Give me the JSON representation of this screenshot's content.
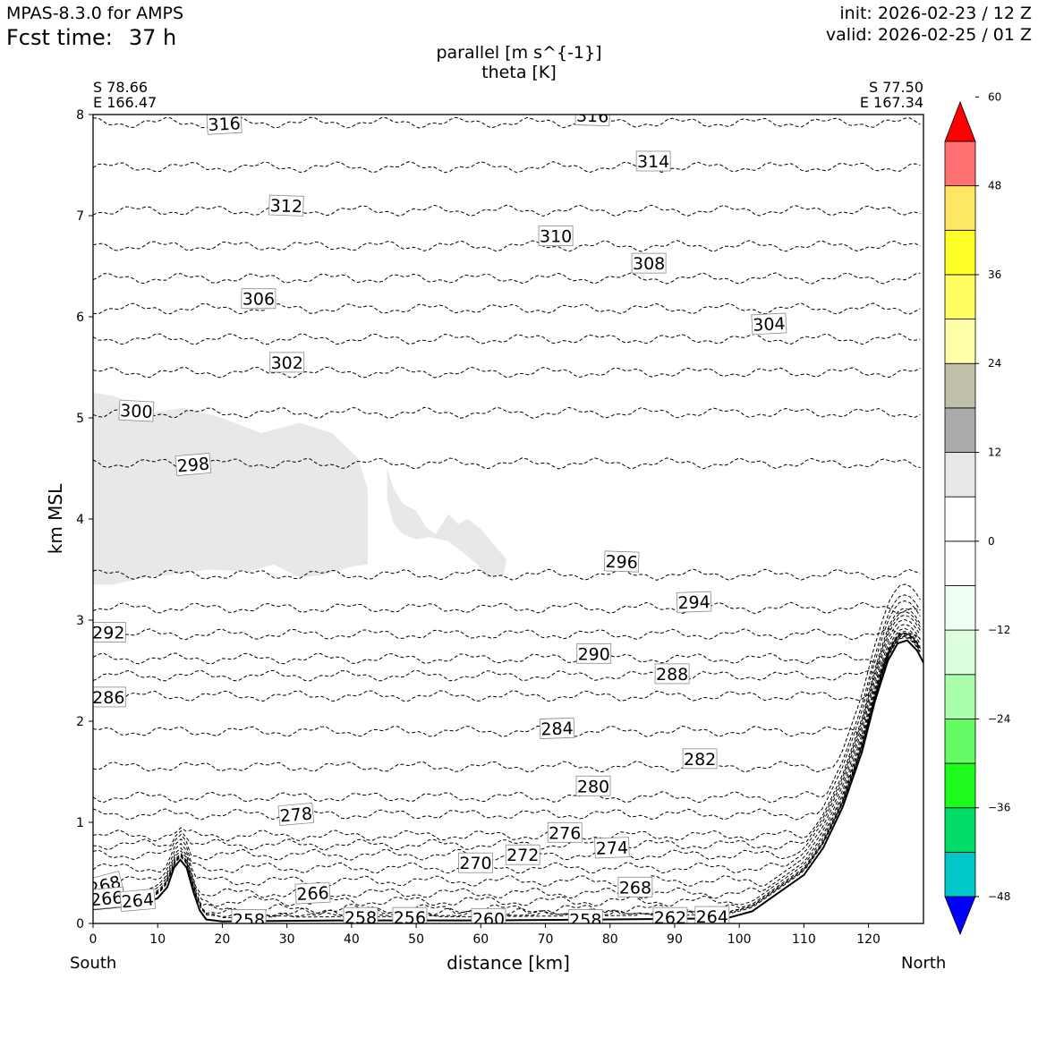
{
  "header": {
    "model": "MPAS-8.3.0 for AMPS",
    "fcst_label": "Fcst time:",
    "fcst_value": "37 h",
    "init": "init: 2026-02-23 / 12 Z",
    "valid": "valid: 2026-02-25 / 01 Z"
  },
  "title": {
    "line1": "parallel [m s^{-1}]",
    "line2": "theta [K]"
  },
  "endpoints": {
    "left_lat": "S 78.66",
    "left_lon": "E 166.47",
    "right_lat": "S 77.50",
    "right_lon": "E 167.34",
    "left_dir": "South",
    "right_dir": "North"
  },
  "chart_data": {
    "type": "contour",
    "xlabel": "distance [km]",
    "ylabel": "km MSL",
    "xlim": [
      0,
      128.5
    ],
    "ylim": [
      0,
      8
    ],
    "xticks": [
      0,
      10,
      20,
      30,
      40,
      50,
      60,
      70,
      80,
      90,
      100,
      110,
      120
    ],
    "yticks": [
      0,
      1,
      2,
      3,
      4,
      5,
      6,
      7,
      8
    ],
    "shaded_field": "parallel wind [m s^-1]",
    "colorbar": {
      "levels": [
        -54,
        -48,
        -42,
        -36,
        -30,
        -24,
        -18,
        -12,
        -6,
        0,
        6,
        12,
        18,
        24,
        30,
        36,
        42,
        48,
        54,
        60
      ],
      "colors": [
        "#0000ff",
        "#00c8c8",
        "#00dc64",
        "#1efa1e",
        "#64fa64",
        "#aaffaa",
        "#dcffdc",
        "#f0fff0",
        "#ffffff",
        "#ffffff",
        "#e8e8e8",
        "#aaaaaa",
        "#c0c0a8",
        "#ffffaa",
        "#ffff64",
        "#ffff28",
        "#ffe664",
        "#ff7070",
        "#ff0000"
      ],
      "tick_labels": [
        "60",
        "48",
        "36",
        "24",
        "12",
        "0",
        "−12",
        "−24",
        "−36",
        "−48"
      ],
      "tick_values": [
        60,
        48,
        36,
        24,
        12,
        0,
        -12,
        -24,
        -36,
        -48
      ]
    },
    "contour_field": "theta [K]",
    "theta_lines": [
      {
        "level": 256,
        "y": 0.05
      },
      {
        "level": 258,
        "y": 0.08
      },
      {
        "level": 260,
        "y": 0.1
      },
      {
        "level": 262,
        "y": 0.14
      },
      {
        "level": 264,
        "y": 0.22
      },
      {
        "level": 266,
        "y": 0.3
      },
      {
        "level": 268,
        "y": 0.42
      },
      {
        "level": 270,
        "y": 0.55
      },
      {
        "level": 272,
        "y": 0.68
      },
      {
        "level": 274,
        "y": 0.78
      },
      {
        "level": 276,
        "y": 0.87
      },
      {
        "level": 278,
        "y": 1.08
      },
      {
        "level": 280,
        "y": 1.25
      },
      {
        "level": 282,
        "y": 1.55
      },
      {
        "level": 284,
        "y": 1.9
      },
      {
        "level": 286,
        "y": 2.25
      },
      {
        "level": 288,
        "y": 2.45
      },
      {
        "level": 290,
        "y": 2.62
      },
      {
        "level": 292,
        "y": 2.86
      },
      {
        "level": 294,
        "y": 3.12
      },
      {
        "level": 296,
        "y": 3.45
      },
      {
        "level": 298,
        "y": 4.55
      },
      {
        "level": 300,
        "y": 5.05
      },
      {
        "level": 302,
        "y": 5.45
      },
      {
        "level": 304,
        "y": 5.78
      },
      {
        "level": 306,
        "y": 6.08
      },
      {
        "level": 308,
        "y": 6.38
      },
      {
        "level": 310,
        "y": 6.7
      },
      {
        "level": 312,
        "y": 7.05
      },
      {
        "level": 314,
        "y": 7.48
      },
      {
        "level": 316,
        "y": 7.92
      }
    ],
    "contour_labels": [
      {
        "text": "316",
        "x": 20.3,
        "y": 7.91,
        "rot": -3
      },
      {
        "text": "316",
        "x": 77.3,
        "y": 7.99,
        "rot": 2
      },
      {
        "text": "314",
        "x": 86.7,
        "y": 7.54,
        "rot": 0
      },
      {
        "text": "312",
        "x": 29.9,
        "y": 7.1,
        "rot": 2
      },
      {
        "text": "310",
        "x": 71.6,
        "y": 6.8,
        "rot": 0
      },
      {
        "text": "308",
        "x": 86.0,
        "y": 6.53,
        "rot": 0
      },
      {
        "text": "306",
        "x": 25.6,
        "y": 6.18,
        "rot": 0
      },
      {
        "text": "304",
        "x": 104.6,
        "y": 5.93,
        "rot": -3
      },
      {
        "text": "302",
        "x": 30.0,
        "y": 5.55,
        "rot": 0
      },
      {
        "text": "300",
        "x": 6.7,
        "y": 5.07,
        "rot": 3
      },
      {
        "text": "298",
        "x": 15.5,
        "y": 4.54,
        "rot": -5
      },
      {
        "text": "296",
        "x": 81.8,
        "y": 3.58,
        "rot": 2
      },
      {
        "text": "294",
        "x": 93.0,
        "y": 3.18,
        "rot": -2
      },
      {
        "text": "292",
        "x": 2.4,
        "y": 2.88,
        "rot": 0
      },
      {
        "text": "290",
        "x": 77.5,
        "y": 2.67,
        "rot": 0
      },
      {
        "text": "288",
        "x": 89.6,
        "y": 2.47,
        "rot": 0
      },
      {
        "text": "286",
        "x": 2.4,
        "y": 2.24,
        "rot": 0
      },
      {
        "text": "284",
        "x": 71.8,
        "y": 1.93,
        "rot": -2
      },
      {
        "text": "282",
        "x": 93.9,
        "y": 1.63,
        "rot": 0
      },
      {
        "text": "280",
        "x": 77.4,
        "y": 1.36,
        "rot": 0
      },
      {
        "text": "278",
        "x": 31.4,
        "y": 1.08,
        "rot": -5
      },
      {
        "text": "276",
        "x": 73.0,
        "y": 0.9,
        "rot": 0
      },
      {
        "text": "274",
        "x": 80.3,
        "y": 0.75,
        "rot": -2
      },
      {
        "text": "272",
        "x": 66.5,
        "y": 0.68,
        "rot": 0
      },
      {
        "text": "270",
        "x": 59.2,
        "y": 0.6,
        "rot": 0
      },
      {
        "text": "268",
        "x": 1.8,
        "y": 0.38,
        "rot": -15
      },
      {
        "text": "268",
        "x": 83.9,
        "y": 0.36,
        "rot": 0
      },
      {
        "text": "266",
        "x": 34.0,
        "y": 0.3,
        "rot": -3
      },
      {
        "text": "266",
        "x": 2.1,
        "y": 0.25,
        "rot": -5
      },
      {
        "text": "264",
        "x": 6.9,
        "y": 0.23,
        "rot": -5
      },
      {
        "text": "264",
        "x": 95.8,
        "y": 0.07,
        "rot": 0
      },
      {
        "text": "262",
        "x": 89.3,
        "y": 0.06,
        "rot": 0
      },
      {
        "text": "260",
        "x": 61.2,
        "y": 0.05,
        "rot": 0
      },
      {
        "text": "258",
        "x": 24.1,
        "y": 0.04,
        "rot": 0
      },
      {
        "text": "258",
        "x": 41.4,
        "y": 0.06,
        "rot": 0
      },
      {
        "text": "258",
        "x": 76.2,
        "y": 0.04,
        "rot": 0
      },
      {
        "text": "256",
        "x": 49.0,
        "y": 0.06,
        "rot": 0
      }
    ],
    "terrain": [
      [
        0,
        0.14
      ],
      [
        5,
        0.17
      ],
      [
        8,
        0.2
      ],
      [
        10,
        0.25
      ],
      [
        11.5,
        0.36
      ],
      [
        12.5,
        0.55
      ],
      [
        13.5,
        0.63
      ],
      [
        14.5,
        0.55
      ],
      [
        15.5,
        0.32
      ],
      [
        16.5,
        0.13
      ],
      [
        17.5,
        0.04
      ],
      [
        20,
        0.02
      ],
      [
        40,
        0.03
      ],
      [
        60,
        0.03
      ],
      [
        80,
        0.04
      ],
      [
        98,
        0.05
      ],
      [
        102,
        0.12
      ],
      [
        106,
        0.3
      ],
      [
        110,
        0.48
      ],
      [
        113,
        0.75
      ],
      [
        116,
        1.15
      ],
      [
        119,
        1.7
      ],
      [
        121,
        2.2
      ],
      [
        123,
        2.6
      ],
      [
        124.5,
        2.77
      ],
      [
        126,
        2.8
      ],
      [
        127.5,
        2.7
      ],
      [
        128.5,
        2.58
      ]
    ],
    "shaded_regions": [
      {
        "value": 6,
        "points": [
          [
            0,
            3.35
          ],
          [
            3,
            3.35
          ],
          [
            8,
            3.42
          ],
          [
            12,
            3.45
          ],
          [
            18,
            3.5
          ],
          [
            24,
            3.48
          ],
          [
            28,
            3.55
          ],
          [
            32,
            3.42
          ],
          [
            36,
            3.45
          ],
          [
            40,
            3.53
          ],
          [
            42.5,
            3.55
          ],
          [
            42.5,
            4.3
          ],
          [
            41,
            4.6
          ],
          [
            37,
            4.85
          ],
          [
            32,
            4.95
          ],
          [
            26,
            4.85
          ],
          [
            20,
            5.0
          ],
          [
            14,
            5.1
          ],
          [
            9,
            5.05
          ],
          [
            6,
            5.15
          ],
          [
            3,
            5.22
          ],
          [
            0,
            5.25
          ]
        ]
      },
      {
        "value": 6,
        "points": [
          [
            45.5,
            4.5
          ],
          [
            46.5,
            4.3
          ],
          [
            48,
            4.15
          ],
          [
            50,
            4.08
          ],
          [
            51.5,
            3.92
          ],
          [
            53,
            3.85
          ],
          [
            55,
            4.05
          ],
          [
            56.5,
            3.95
          ],
          [
            58,
            4.0
          ],
          [
            60,
            3.9
          ],
          [
            62,
            3.75
          ],
          [
            64,
            3.6
          ],
          [
            63.5,
            3.45
          ],
          [
            61,
            3.42
          ],
          [
            59.5,
            3.55
          ],
          [
            57,
            3.68
          ],
          [
            55,
            3.78
          ],
          [
            52,
            3.82
          ],
          [
            50,
            3.8
          ],
          [
            48,
            3.85
          ],
          [
            46.5,
            3.95
          ],
          [
            45.5,
            4.2
          ]
        ]
      },
      {
        "value": -6,
        "points": [
          [
            11,
            1.45
          ],
          [
            14,
            1.5
          ],
          [
            20,
            1.45
          ],
          [
            28,
            1.5
          ],
          [
            35,
            1.55
          ],
          [
            42,
            1.55
          ],
          [
            46,
            1.95
          ],
          [
            54,
            2.05
          ],
          [
            62,
            2.0
          ],
          [
            70,
            2.07
          ],
          [
            78,
            2.1
          ],
          [
            86,
            2.1
          ],
          [
            94,
            2.12
          ],
          [
            102,
            2.07
          ],
          [
            110,
            2.15
          ],
          [
            116,
            2.3
          ],
          [
            115,
            2.05
          ],
          [
            110,
            1.8
          ],
          [
            104,
            1.65
          ],
          [
            100,
            1.3
          ],
          [
            96,
            1.1
          ],
          [
            90,
            0.7
          ],
          [
            84,
            0.5
          ],
          [
            74,
            0.4
          ],
          [
            64,
            0.45
          ],
          [
            54,
            0.5
          ],
          [
            48,
            0.6
          ],
          [
            44,
            0.8
          ],
          [
            40,
            1.0
          ],
          [
            34,
            1.1
          ],
          [
            26,
            1.15
          ],
          [
            20,
            1.1
          ],
          [
            14,
            1.15
          ],
          [
            11,
            1.3
          ]
        ]
      }
    ]
  }
}
